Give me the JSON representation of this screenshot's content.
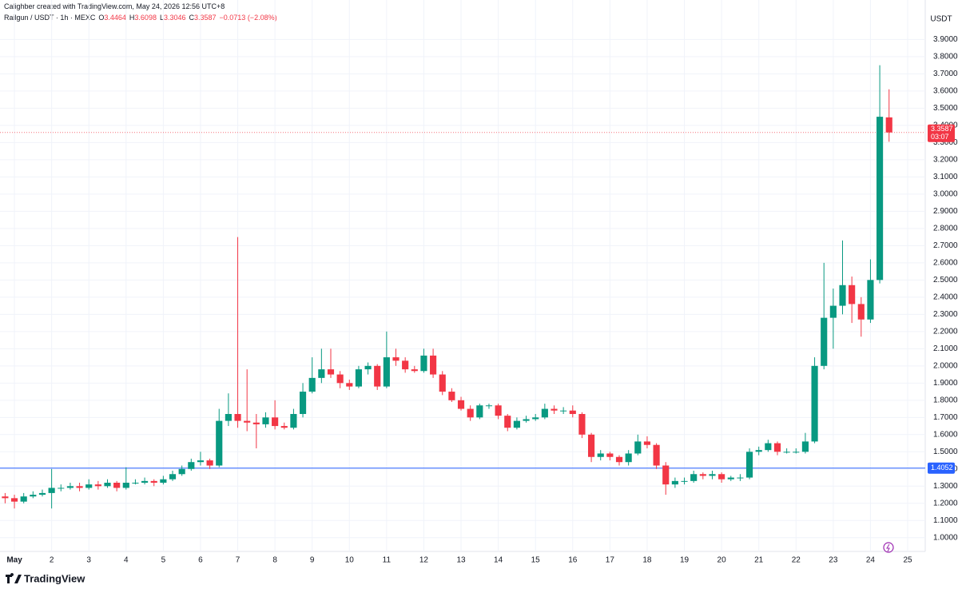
{
  "attribution": "Calighber created with TradingView.com, May 24, 2026 12:56 UTC+8",
  "brand": "TradingView",
  "chart_data": {
    "type": "candlestick",
    "symbol": "Railgun / USDT · 1h · MEXC",
    "ohlc_legend": [
      {
        "key": "O",
        "value": "3.4464"
      },
      {
        "key": "H",
        "value": "3.6098"
      },
      {
        "key": "L",
        "value": "3.3046"
      },
      {
        "key": "C",
        "value": "3.3587"
      }
    ],
    "change": "−0.0713 (−2.08%)",
    "currency": "USDT",
    "up_color": "#089981",
    "down_color": "#f23645",
    "grid": true,
    "last_price": 3.3587,
    "countdown": "03:07",
    "hline": 1.4052,
    "hline_color": "#2962ff",
    "xlim": [
      0.72,
      25.3
    ],
    "xticks": [
      {
        "value": 1,
        "label": "May"
      },
      2,
      3,
      4,
      5,
      6,
      7,
      8,
      9,
      10,
      11,
      12,
      13,
      14,
      15,
      16,
      17,
      18,
      19,
      20,
      21,
      22,
      23,
      24,
      25
    ],
    "ylim": [
      0.92,
      3.99
    ],
    "yticks": [
      {
        "value": 1.0,
        "label": "1.0000"
      },
      {
        "value": 1.1,
        "label": "1.1000"
      },
      {
        "value": 1.2,
        "label": "1.2000"
      },
      {
        "value": 1.3,
        "label": "1.3000"
      },
      {
        "value": 1.4,
        "label": "1.4000"
      },
      {
        "value": 1.5,
        "label": "1.5000"
      },
      {
        "value": 1.6,
        "label": "1.6000"
      },
      {
        "value": 1.7,
        "label": "1.7000"
      },
      {
        "value": 1.8,
        "label": "1.8000"
      },
      {
        "value": 1.9,
        "label": "1.9000"
      },
      {
        "value": 2.0,
        "label": "2.0000"
      },
      {
        "value": 2.1,
        "label": "2.1000"
      },
      {
        "value": 2.2,
        "label": "2.2000"
      },
      {
        "value": 2.3,
        "label": "2.3000"
      },
      {
        "value": 2.4,
        "label": "2.4000"
      },
      {
        "value": 2.5,
        "label": "2.5000"
      },
      {
        "value": 2.6,
        "label": "2.6000"
      },
      {
        "value": 2.7,
        "label": "2.7000"
      },
      {
        "value": 2.8,
        "label": "2.8000"
      },
      {
        "value": 2.9,
        "label": "2.9000"
      },
      {
        "value": 3.0,
        "label": "3.0000"
      },
      {
        "value": 3.1,
        "label": "3.1000"
      },
      {
        "value": 3.2,
        "label": "3.2000"
      },
      {
        "value": 3.3,
        "label": "3.3000"
      },
      {
        "value": 3.4,
        "label": "3.4000"
      },
      {
        "value": 3.5,
        "label": "3.5000"
      },
      {
        "value": 3.6,
        "label": "3.6000"
      },
      {
        "value": 3.7,
        "label": "3.7000"
      },
      {
        "value": 3.8,
        "label": "3.8000"
      },
      {
        "value": 3.9,
        "label": "3.9000"
      }
    ],
    "x": [
      0.75,
      1,
      1.25,
      1.5,
      1.75,
      2,
      2.25,
      2.5,
      2.75,
      3,
      3.25,
      3.5,
      3.75,
      4,
      4.25,
      4.5,
      4.75,
      5,
      5.25,
      5.5,
      5.75,
      6,
      6.25,
      6.5,
      6.75,
      7,
      7.25,
      7.5,
      7.75,
      8,
      8.25,
      8.5,
      8.75,
      9,
      9.25,
      9.5,
      9.75,
      10,
      10.25,
      10.5,
      10.75,
      11,
      11.25,
      11.5,
      11.75,
      12,
      12.25,
      12.5,
      12.75,
      13,
      13.25,
      13.5,
      13.75,
      14,
      14.25,
      14.5,
      14.75,
      15,
      15.25,
      15.5,
      15.75,
      16,
      16.25,
      16.5,
      16.75,
      17,
      17.25,
      17.5,
      17.75,
      18,
      18.25,
      18.5,
      18.75,
      19,
      19.25,
      19.5,
      19.75,
      20,
      20.25,
      20.5,
      20.75,
      21,
      21.25,
      21.5,
      21.75,
      22,
      22.25,
      22.5,
      22.75,
      23,
      23.25,
      23.5,
      23.75,
      24,
      24.25,
      24.5
    ],
    "open": [
      1.24,
      1.23,
      1.21,
      1.24,
      1.25,
      1.26,
      1.29,
      1.29,
      1.3,
      1.29,
      1.31,
      1.3,
      1.32,
      1.29,
      1.32,
      1.32,
      1.33,
      1.32,
      1.34,
      1.37,
      1.4,
      1.44,
      1.45,
      1.42,
      1.68,
      1.72,
      1.68,
      1.67,
      1.66,
      1.7,
      1.65,
      1.64,
      1.72,
      1.85,
      1.93,
      1.98,
      1.95,
      1.9,
      1.88,
      1.98,
      2.0,
      1.88,
      2.05,
      2.03,
      1.98,
      1.97,
      2.06,
      1.95,
      1.85,
      1.8,
      1.75,
      1.7,
      1.77,
      1.77,
      1.71,
      1.64,
      1.68,
      1.69,
      1.7,
      1.75,
      1.74,
      1.74,
      1.72,
      1.6,
      1.47,
      1.49,
      1.47,
      1.44,
      1.49,
      1.56,
      1.54,
      1.42,
      1.31,
      1.33,
      1.33,
      1.37,
      1.36,
      1.37,
      1.34,
      1.35,
      1.35,
      1.5,
      1.51,
      1.55,
      1.5,
      1.5,
      1.5,
      1.56,
      2.0,
      2.28,
      2.35,
      2.47,
      2.36,
      2.27,
      2.5,
      3.4464
    ],
    "high": [
      1.26,
      1.25,
      1.26,
      1.27,
      1.28,
      1.4,
      1.31,
      1.32,
      1.32,
      1.34,
      1.33,
      1.34,
      1.33,
      1.41,
      1.34,
      1.35,
      1.34,
      1.36,
      1.39,
      1.42,
      1.46,
      1.5,
      1.46,
      1.75,
      1.84,
      2.75,
      1.98,
      1.72,
      1.73,
      1.8,
      1.67,
      1.75,
      1.9,
      2.05,
      2.1,
      2.1,
      1.97,
      1.92,
      2.0,
      2.02,
      2.01,
      2.2,
      2.1,
      2.05,
      2.0,
      2.1,
      2.1,
      1.97,
      1.87,
      1.82,
      1.77,
      1.78,
      1.78,
      1.78,
      1.72,
      1.7,
      1.71,
      1.72,
      1.78,
      1.77,
      1.76,
      1.77,
      1.73,
      1.61,
      1.51,
      1.5,
      1.48,
      1.51,
      1.6,
      1.59,
      1.55,
      1.44,
      1.35,
      1.35,
      1.39,
      1.38,
      1.39,
      1.38,
      1.36,
      1.37,
      1.52,
      1.53,
      1.57,
      1.56,
      1.52,
      1.52,
      1.61,
      2.05,
      2.6,
      2.45,
      2.73,
      2.52,
      2.4,
      2.62,
      3.75,
      3.6098
    ],
    "low": [
      1.2,
      1.17,
      1.2,
      1.23,
      1.24,
      1.17,
      1.27,
      1.28,
      1.27,
      1.28,
      1.28,
      1.29,
      1.27,
      1.28,
      1.31,
      1.31,
      1.3,
      1.31,
      1.33,
      1.36,
      1.39,
      1.42,
      1.4,
      1.41,
      1.65,
      1.64,
      1.62,
      1.52,
      1.64,
      1.63,
      1.63,
      1.63,
      1.7,
      1.84,
      1.9,
      1.93,
      1.87,
      1.86,
      1.87,
      1.95,
      1.86,
      1.87,
      2.0,
      1.96,
      1.96,
      1.96,
      1.93,
      1.83,
      1.79,
      1.74,
      1.68,
      1.69,
      1.75,
      1.69,
      1.62,
      1.63,
      1.67,
      1.68,
      1.69,
      1.72,
      1.72,
      1.7,
      1.58,
      1.44,
      1.45,
      1.45,
      1.42,
      1.42,
      1.48,
      1.52,
      1.4,
      1.25,
      1.29,
      1.31,
      1.32,
      1.34,
      1.34,
      1.32,
      1.33,
      1.33,
      1.34,
      1.48,
      1.5,
      1.48,
      1.49,
      1.49,
      1.49,
      1.55,
      1.98,
      2.1,
      2.3,
      2.25,
      2.17,
      2.25,
      2.48,
      3.3046
    ],
    "close": [
      1.23,
      1.21,
      1.24,
      1.25,
      1.26,
      1.29,
      1.29,
      1.3,
      1.29,
      1.31,
      1.3,
      1.32,
      1.29,
      1.32,
      1.32,
      1.33,
      1.32,
      1.34,
      1.37,
      1.4,
      1.44,
      1.45,
      1.42,
      1.68,
      1.72,
      1.68,
      1.67,
      1.66,
      1.7,
      1.65,
      1.64,
      1.72,
      1.85,
      1.93,
      1.98,
      1.95,
      1.9,
      1.88,
      1.98,
      2.0,
      1.88,
      2.05,
      2.03,
      1.98,
      1.97,
      2.06,
      1.95,
      1.85,
      1.8,
      1.75,
      1.7,
      1.77,
      1.77,
      1.71,
      1.64,
      1.68,
      1.69,
      1.7,
      1.75,
      1.74,
      1.74,
      1.72,
      1.6,
      1.47,
      1.49,
      1.47,
      1.44,
      1.49,
      1.56,
      1.54,
      1.42,
      1.31,
      1.33,
      1.33,
      1.37,
      1.36,
      1.37,
      1.34,
      1.35,
      1.35,
      1.5,
      1.51,
      1.55,
      1.5,
      1.5,
      1.5,
      1.56,
      2.0,
      2.28,
      2.35,
      2.47,
      2.36,
      2.27,
      2.5,
      3.45,
      3.3587
    ]
  }
}
